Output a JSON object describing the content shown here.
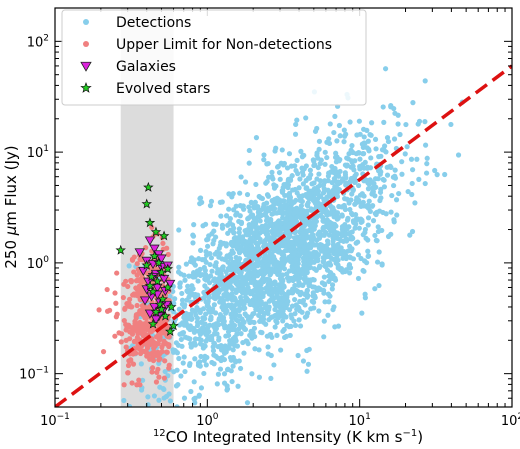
{
  "chart_data": {
    "type": "scatter",
    "xlabel_main": "CO Integrated Intensity (K km s",
    "xlabel_iso": "12",
    "xlabel_exp": "−1",
    "xlabel_close": ")",
    "ylabel_main": "250 ",
    "ylabel_mu": "μ",
    "ylabel_rest": "m Flux (Jy)",
    "xscale": "log",
    "yscale": "log",
    "xlim": [
      0.1,
      100
    ],
    "ylim": [
      0.05,
      200
    ],
    "x_ticks": [
      {
        "value": 0.1,
        "base": "10",
        "exp": "−1"
      },
      {
        "value": 1,
        "base": "10",
        "exp": "0"
      },
      {
        "value": 10,
        "base": "10",
        "exp": "1"
      },
      {
        "value": 100,
        "base": "10",
        "exp": "2"
      }
    ],
    "y_ticks": [
      {
        "value": 0.1,
        "base": "10",
        "exp": "−1"
      },
      {
        "value": 1,
        "base": "10",
        "exp": "0"
      },
      {
        "value": 10,
        "base": "10",
        "exp": "1"
      },
      {
        "value": 100,
        "base": "10",
        "exp": "2"
      }
    ],
    "shaded_band": {
      "x_range": [
        0.27,
        0.6
      ],
      "color": "#dcdcdc"
    },
    "fit_line": {
      "x": [
        0.1,
        100
      ],
      "y": [
        0.05,
        60
      ],
      "color": "#dd1111",
      "style": "dashed"
    },
    "legend": {
      "placement": "top-left",
      "entries": [
        {
          "label": "Detections",
          "marker": "circle",
          "color": "#87ceeb"
        },
        {
          "label": "Upper Limit for Non-detections",
          "marker": "circle",
          "color": "#f08080"
        },
        {
          "label": "Galaxies",
          "marker": "triangle-down",
          "color": "#dd22dd"
        },
        {
          "label": "Evolved stars",
          "marker": "star",
          "color": "#22cc22"
        }
      ]
    },
    "series": [
      {
        "name": "Detections",
        "marker": "circle",
        "color": "#87ceeb",
        "distribution": {
          "x_log_center": 0.45,
          "x_log_sd": 0.38,
          "x_log_min": -0.55,
          "x_log_max": 1.75,
          "y_slope": 0.9,
          "y_intercept": -0.35,
          "y_sd": 0.38,
          "count": 2500
        }
      },
      {
        "name": "Upper Limit for Non-detections",
        "marker": "circle",
        "color": "#f08080",
        "distribution": {
          "x_log_range": [
            -0.8,
            -0.25
          ],
          "x_log_center": -0.38,
          "y_log_range": [
            -1.1,
            0.85
          ],
          "y_log_center": -0.45,
          "count": 420
        }
      },
      {
        "name": "Galaxies",
        "marker": "triangle-down",
        "color": "#dd22dd",
        "points": [
          [
            0.42,
            1.6
          ],
          [
            0.45,
            1.35
          ],
          [
            0.48,
            1.2
          ],
          [
            0.4,
            1.05
          ],
          [
            0.44,
            0.98
          ],
          [
            0.5,
            0.92
          ],
          [
            0.38,
            0.85
          ],
          [
            0.46,
            0.8
          ],
          [
            0.52,
            0.72
          ],
          [
            0.41,
            0.68
          ],
          [
            0.47,
            0.6
          ],
          [
            0.53,
            0.56
          ],
          [
            0.43,
            0.5
          ],
          [
            0.39,
            0.46
          ],
          [
            0.49,
            0.44
          ],
          [
            0.45,
            0.4
          ],
          [
            0.51,
            0.37
          ],
          [
            0.42,
            0.35
          ],
          [
            0.48,
            0.33
          ],
          [
            0.46,
            0.31
          ],
          [
            0.55,
            0.95
          ],
          [
            0.36,
            1.25
          ],
          [
            0.57,
            0.65
          ],
          [
            0.44,
            0.75
          ],
          [
            0.5,
            1.1
          ],
          [
            0.4,
            0.58
          ],
          [
            0.54,
            0.42
          ],
          [
            0.47,
            0.52
          ]
        ]
      },
      {
        "name": "Evolved stars",
        "marker": "star",
        "color": "#22cc22",
        "points": [
          [
            0.41,
            4.8
          ],
          [
            0.4,
            3.4
          ],
          [
            0.42,
            2.3
          ],
          [
            0.46,
            1.9
          ],
          [
            0.52,
            1.75
          ],
          [
            0.27,
            1.3
          ],
          [
            0.45,
            1.15
          ],
          [
            0.48,
            1.0
          ],
          [
            0.4,
            0.95
          ],
          [
            0.5,
            0.82
          ],
          [
            0.43,
            0.75
          ],
          [
            0.47,
            0.68
          ],
          [
            0.55,
            0.6
          ],
          [
            0.44,
            0.55
          ],
          [
            0.51,
            0.47
          ],
          [
            0.49,
            0.42
          ],
          [
            0.58,
            0.4
          ],
          [
            0.46,
            0.36
          ],
          [
            0.53,
            0.33
          ],
          [
            0.6,
            0.27
          ],
          [
            0.57,
            0.24
          ],
          [
            0.44,
            0.28
          ],
          [
            0.5,
            0.38
          ],
          [
            0.42,
            0.62
          ],
          [
            0.55,
            0.88
          ]
        ]
      }
    ]
  }
}
